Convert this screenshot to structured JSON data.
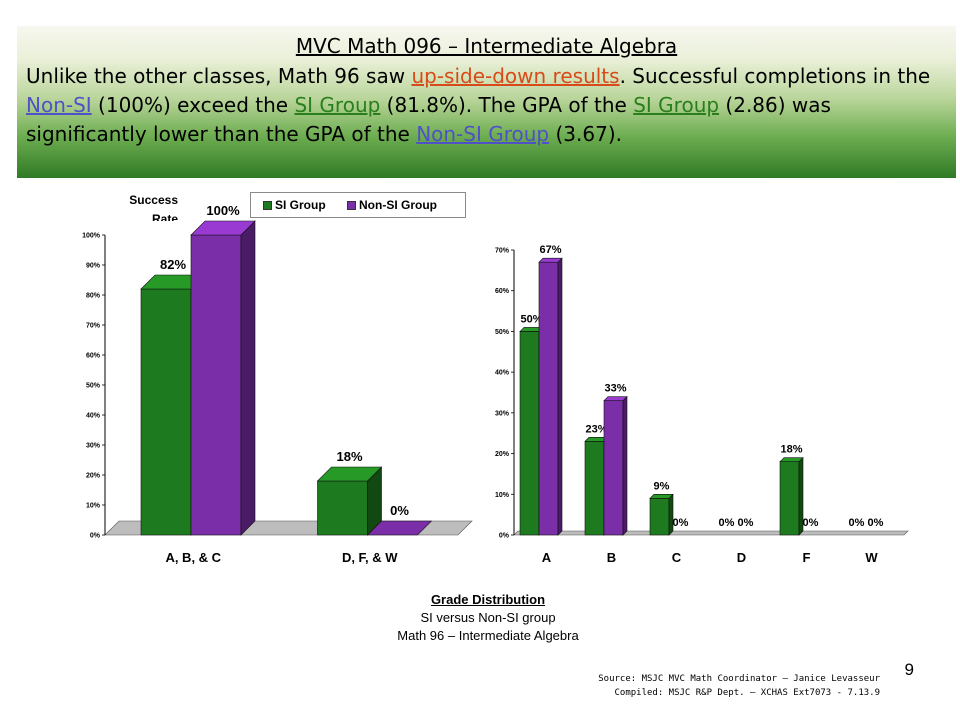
{
  "banner": {
    "title": "MVC Math 096 – Intermediate Algebra",
    "t1": "Unlike the other classes, Math 96 saw ",
    "link_results": "up-side-down results",
    "t2": ".  Successful completions in the ",
    "link_nonsi": "Non-SI",
    "t3": " (100%) exceed the ",
    "link_si": "SI Group",
    "t4": " (81.8%).  The GPA of the ",
    "link_si2": "SI Group",
    "t5": " (2.86) was significantly lower than the GPA of the ",
    "link_nonsi2": "Non-SI Group",
    "t6": " (3.67)."
  },
  "colors": {
    "si": "#1e7a1e",
    "nonsi": "#7a2fa8",
    "banner_top": "#f7f7f0",
    "banner_bottom": "#2f7a25"
  },
  "legend": {
    "si": "SI Group",
    "nonsi": "Non-SI Group"
  },
  "yaxis_title": {
    "line1": "Success",
    "line2": "Rate"
  },
  "chart_data": [
    {
      "type": "bar",
      "ylabel": "Success Rate",
      "ylim": [
        0,
        100
      ],
      "yticks": [
        "0%",
        "10%",
        "20%",
        "30%",
        "40%",
        "50%",
        "60%",
        "70%",
        "80%",
        "90%",
        "100%"
      ],
      "categories": [
        "A, B, & C",
        "D, F, & W"
      ],
      "series": [
        {
          "name": "SI Group",
          "values": [
            82,
            18
          ],
          "labels": [
            "82%",
            "18%"
          ]
        },
        {
          "name": "Non-SI Group",
          "values": [
            100,
            0
          ],
          "labels": [
            "100%",
            "0%"
          ]
        }
      ],
      "legend": "top",
      "style": "3d"
    },
    {
      "type": "bar",
      "ylim": [
        0,
        70
      ],
      "yticks": [
        "0%",
        "10%",
        "20%",
        "30%",
        "40%",
        "50%",
        "60%",
        "70%"
      ],
      "categories": [
        "A",
        "B",
        "C",
        "D",
        "F",
        "W"
      ],
      "series": [
        {
          "name": "SI Group",
          "values": [
            50,
            23,
            9,
            0,
            18,
            0
          ],
          "labels": [
            "50%",
            "23%",
            "9%",
            "0%",
            "18%",
            "0%"
          ]
        },
        {
          "name": "Non-SI Group",
          "values": [
            67,
            33,
            0,
            0,
            0,
            0
          ],
          "labels": [
            "67%",
            "33%",
            "0%",
            "0%",
            "0%",
            "0%"
          ]
        }
      ],
      "style": "3d"
    }
  ],
  "caption": {
    "title": "Grade Distribution",
    "line1": "SI versus Non-SI group",
    "line2": "Math 96 – Intermediate Algebra"
  },
  "source": {
    "line1": "Source: MSJC MVC Math Coordinator – Janice Levasseur",
    "line2": "Compiled: MSJC R&P Dept. – XCHAS  Ext7073 -  7.13.9"
  },
  "page_number": "9"
}
